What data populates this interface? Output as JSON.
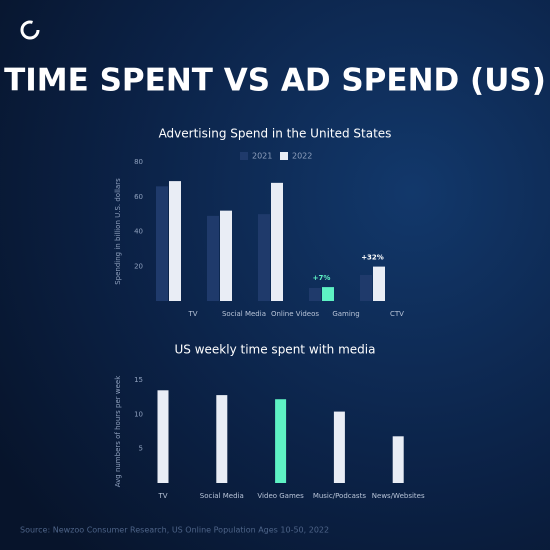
{
  "title": "TIME SPENT VS AD SPEND (US)",
  "source": "Source: Newzoo Consumer Research, US Online Population Ages 10-50, 2022",
  "chart_data": [
    {
      "type": "grouped-bar",
      "title": "Advertising Spend in the United States",
      "y_label": "Spending in billion U.S. dollars",
      "categories": [
        "TV",
        "Social Media",
        "Online Videos",
        "Gaming",
        "CTV"
      ],
      "series": [
        {
          "name": "2021",
          "color": "#1f3a6b",
          "values": [
            66,
            49,
            50,
            7.5,
            15
          ]
        },
        {
          "name": "2022",
          "color": "#e9edf5",
          "values": [
            69,
            52,
            68,
            8,
            19.8
          ]
        }
      ],
      "highlight": {
        "category": "Gaming",
        "color": "#5ef2c4"
      },
      "annotations": [
        {
          "category": "Gaming",
          "text": "+7%"
        },
        {
          "category": "CTV",
          "text": "+32%"
        }
      ],
      "ylim": [
        0,
        80
      ],
      "yticks": [
        20,
        40,
        60,
        80
      ]
    },
    {
      "type": "bar",
      "title": "US weekly time spent with media",
      "y_label": "Avg numbers of hours per week",
      "categories": [
        "TV",
        "Social Media",
        "Video Games",
        "Music/Podcasts",
        "News/Websites"
      ],
      "values": [
        13.5,
        12.8,
        12.2,
        10.4,
        6.8
      ],
      "color": "#e9edf5",
      "highlight": {
        "category": "Video Games",
        "color": "#5ef2c4"
      },
      "ylim": [
        0,
        15
      ],
      "yticks": [
        5,
        10,
        15
      ]
    }
  ]
}
